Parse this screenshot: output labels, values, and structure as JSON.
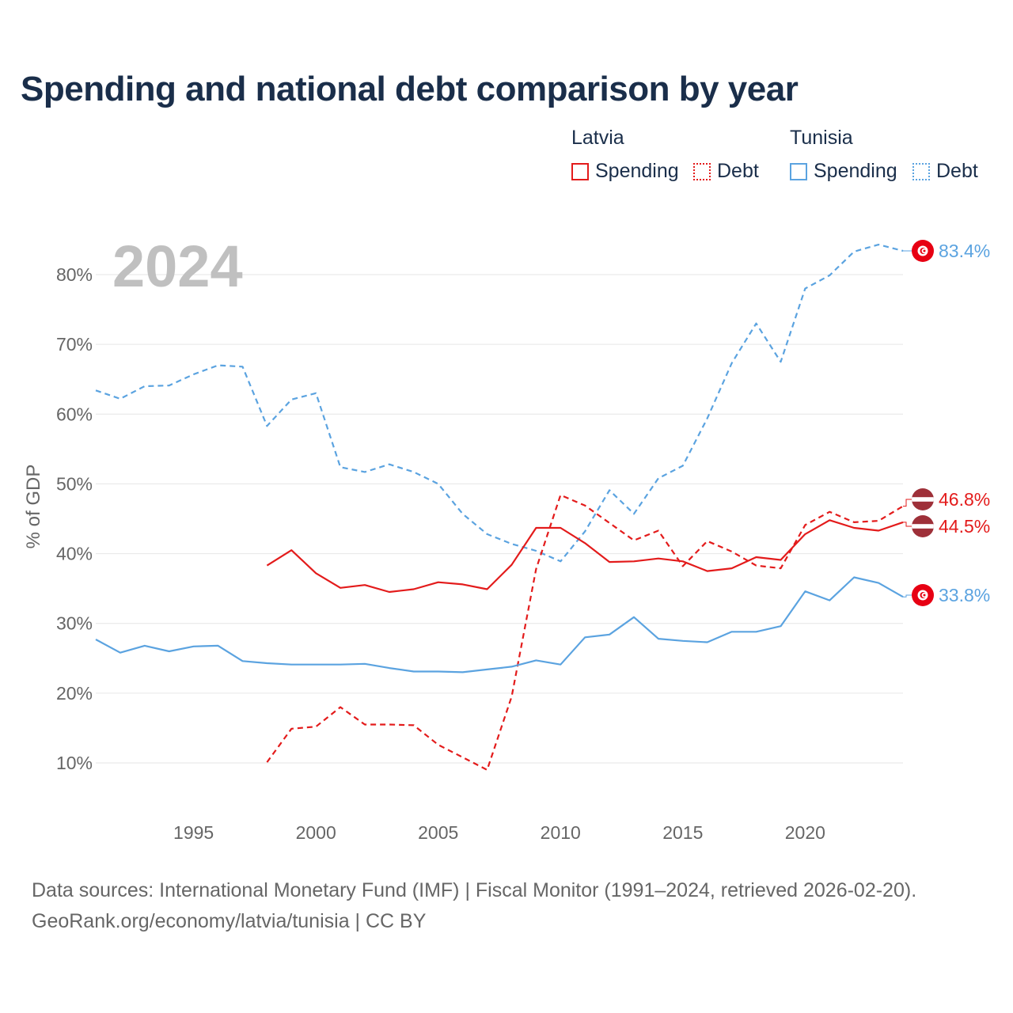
{
  "title": "Spending and national debt comparison by year",
  "legend": {
    "groups": [
      {
        "name": "Latvia",
        "items": [
          {
            "label": "Spending",
            "style": "solid"
          },
          {
            "label": "Debt",
            "style": "dotted"
          }
        ],
        "color": "#e31b1b"
      },
      {
        "name": "Tunisia",
        "items": [
          {
            "label": "Spending",
            "style": "solid"
          },
          {
            "label": "Debt",
            "style": "dotted"
          }
        ],
        "color": "#5ba3e0"
      }
    ]
  },
  "colors": {
    "latvia": "#e31b1b",
    "tunisia": "#5ba3e0",
    "grid": "#e6e6e6",
    "axis_text": "#666666",
    "watermark": "#c0c0c0"
  },
  "footer": {
    "line1": "Data sources: International Monetary Fund (IMF) | Fiscal Monitor (1991–2024, retrieved 2026-02-20).",
    "line2": "GeoRank.org/economy/latvia/tunisia | CC BY"
  },
  "chart_data": {
    "type": "line",
    "title": "Spending and national debt comparison by year",
    "watermark_year": "2024",
    "ylabel": "% of GDP",
    "xlabel": "",
    "xlim": [
      1991,
      2024
    ],
    "ylim": [
      0,
      90
    ],
    "y_ticks": [
      10,
      20,
      30,
      40,
      50,
      60,
      70,
      80
    ],
    "y_tick_labels": [
      "10%",
      "20%",
      "30%",
      "40%",
      "50%",
      "60%",
      "70%",
      "80%"
    ],
    "x_ticks": [
      1995,
      2000,
      2005,
      2010,
      2015,
      2020
    ],
    "x_tick_labels": [
      "1995",
      "2000",
      "2005",
      "2010",
      "2015",
      "2020"
    ],
    "series": [
      {
        "name": "Tunisia Debt",
        "country": "tunisia",
        "dashed": true,
        "x": [
          1991,
          1992,
          1993,
          1994,
          1995,
          1996,
          1997,
          1998,
          1999,
          2000,
          2001,
          2002,
          2003,
          2004,
          2005,
          2006,
          2007,
          2008,
          2009,
          2010,
          2011,
          2012,
          2013,
          2014,
          2015,
          2016,
          2017,
          2018,
          2019,
          2020,
          2021,
          2022,
          2023,
          2024
        ],
        "values": [
          63.4,
          62.2,
          64.0,
          64.1,
          65.7,
          67.0,
          66.8,
          58.3,
          62.1,
          63.0,
          52.4,
          51.7,
          52.8,
          51.7,
          50.0,
          45.7,
          42.8,
          41.4,
          40.4,
          38.9,
          43.2,
          49.1,
          45.7,
          50.8,
          52.6,
          59.4,
          67.3,
          73.0,
          67.5,
          78.0,
          79.9,
          83.3,
          84.3,
          83.4
        ],
        "end_label": "83.4%"
      },
      {
        "name": "Latvia Debt",
        "country": "latvia",
        "dashed": true,
        "x": [
          1998,
          1999,
          2000,
          2001,
          2002,
          2003,
          2004,
          2005,
          2006,
          2007,
          2008,
          2009,
          2010,
          2011,
          2012,
          2013,
          2014,
          2015,
          2016,
          2017,
          2018,
          2019,
          2020,
          2021,
          2022,
          2023,
          2024
        ],
        "values": [
          10.1,
          14.9,
          15.2,
          18.0,
          15.5,
          15.5,
          15.4,
          12.6,
          10.8,
          9.0,
          19.5,
          37.8,
          48.4,
          46.9,
          44.4,
          41.9,
          43.3,
          38.2,
          41.8,
          40.3,
          38.3,
          37.9,
          44.1,
          46.0,
          44.5,
          44.7,
          46.8
        ],
        "end_label": "46.8%"
      },
      {
        "name": "Latvia Spending",
        "country": "latvia",
        "dashed": false,
        "x": [
          1998,
          1999,
          2000,
          2001,
          2002,
          2003,
          2004,
          2005,
          2006,
          2007,
          2008,
          2009,
          2010,
          2011,
          2012,
          2013,
          2014,
          2015,
          2016,
          2017,
          2018,
          2019,
          2020,
          2021,
          2022,
          2023,
          2024
        ],
        "values": [
          38.3,
          40.5,
          37.2,
          35.1,
          35.5,
          34.5,
          34.9,
          35.9,
          35.6,
          34.9,
          38.4,
          43.7,
          43.7,
          41.5,
          38.8,
          38.9,
          39.3,
          38.9,
          37.5,
          37.9,
          39.5,
          39.1,
          42.8,
          44.8,
          43.7,
          43.3,
          44.5
        ],
        "end_label": "44.5%"
      },
      {
        "name": "Tunisia Spending",
        "country": "tunisia",
        "dashed": false,
        "x": [
          1991,
          1992,
          1993,
          1994,
          1995,
          1996,
          1997,
          1998,
          1999,
          2000,
          2001,
          2002,
          2003,
          2004,
          2005,
          2006,
          2007,
          2008,
          2009,
          2010,
          2011,
          2012,
          2013,
          2014,
          2015,
          2016,
          2017,
          2018,
          2019,
          2020,
          2021,
          2022,
          2023,
          2024
        ],
        "values": [
          27.7,
          25.8,
          26.8,
          26.0,
          26.7,
          26.8,
          24.6,
          24.3,
          24.1,
          24.1,
          24.1,
          24.2,
          23.6,
          23.1,
          23.1,
          23.0,
          23.4,
          23.8,
          24.7,
          24.1,
          28.0,
          28.4,
          30.9,
          27.8,
          27.5,
          27.3,
          28.8,
          28.8,
          29.6,
          34.6,
          33.3,
          36.6,
          35.8,
          33.8
        ],
        "end_label": "33.8%"
      }
    ]
  }
}
